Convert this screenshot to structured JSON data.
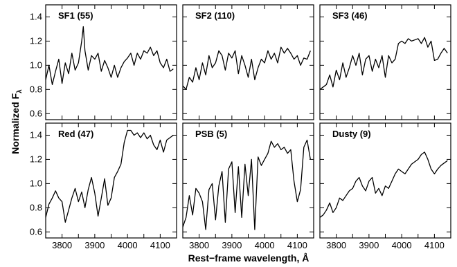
{
  "chart_data": {
    "type": "line",
    "layout": "2x3 panels, shared axes",
    "xlabel": "Rest−frame wavelength, Å",
    "ylabel_main": "Normalized F",
    "ylabel_sub": "λ",
    "xlim": [
      3750,
      4150
    ],
    "ylim": [
      0.55,
      1.5
    ],
    "xticks": [
      3800,
      3850,
      3900,
      3950,
      4000,
      4050,
      4100
    ],
    "xtick_labels": [
      "3800",
      "3900",
      "4000",
      "4100"
    ],
    "xtick_labeled_values": [
      3800,
      3900,
      4000,
      4100
    ],
    "yticks": [
      0.6,
      0.8,
      1.0,
      1.2,
      1.4
    ],
    "ytick_labels": [
      "0.6",
      "0.8",
      "1.0",
      "1.2",
      "1.4"
    ],
    "panels": [
      {
        "title": "SF1 (55)",
        "x": [
          3750,
          3760,
          3770,
          3780,
          3790,
          3800,
          3810,
          3820,
          3830,
          3840,
          3850,
          3860,
          3865,
          3870,
          3880,
          3890,
          3900,
          3910,
          3920,
          3930,
          3940,
          3950,
          3960,
          3970,
          3980,
          3990,
          4000,
          4010,
          4020,
          4030,
          4040,
          4050,
          4060,
          4070,
          4080,
          4090,
          4100,
          4110,
          4120,
          4130,
          4140
        ],
        "y": [
          0.88,
          1.0,
          0.84,
          0.95,
          1.05,
          0.85,
          1.02,
          0.93,
          1.1,
          0.96,
          1.02,
          1.2,
          1.32,
          1.12,
          0.96,
          1.08,
          1.05,
          1.1,
          0.95,
          1.04,
          0.98,
          0.9,
          1.0,
          0.9,
          0.98,
          1.03,
          1.06,
          1.1,
          1.0,
          1.1,
          1.05,
          1.12,
          1.1,
          1.15,
          1.08,
          1.12,
          1.02,
          0.98,
          1.05,
          0.95,
          0.97
        ]
      },
      {
        "title": "SF2 (110)",
        "x": [
          3750,
          3760,
          3770,
          3780,
          3790,
          3800,
          3810,
          3820,
          3830,
          3840,
          3850,
          3860,
          3870,
          3880,
          3890,
          3900,
          3910,
          3920,
          3930,
          3940,
          3950,
          3960,
          3970,
          3980,
          3990,
          4000,
          4010,
          4020,
          4030,
          4040,
          4050,
          4060,
          4070,
          4080,
          4090,
          4100,
          4110,
          4120,
          4130,
          4140
        ],
        "y": [
          0.83,
          0.8,
          0.9,
          0.86,
          0.98,
          0.88,
          1.02,
          0.92,
          1.08,
          0.98,
          1.02,
          1.12,
          1.08,
          0.96,
          1.1,
          1.06,
          1.12,
          0.93,
          1.08,
          1.0,
          0.9,
          1.05,
          0.88,
          0.98,
          1.05,
          1.02,
          1.12,
          1.05,
          1.1,
          1.02,
          1.15,
          1.1,
          1.14,
          1.1,
          1.05,
          1.08,
          1.0,
          1.06,
          1.05,
          1.12
        ]
      },
      {
        "title": "SF3 (46)",
        "x": [
          3750,
          3760,
          3770,
          3780,
          3790,
          3800,
          3810,
          3820,
          3830,
          3840,
          3850,
          3860,
          3870,
          3880,
          3890,
          3900,
          3910,
          3920,
          3930,
          3940,
          3950,
          3960,
          3970,
          3980,
          3990,
          4000,
          4010,
          4020,
          4030,
          4040,
          4050,
          4060,
          4070,
          4080,
          4090,
          4100,
          4110,
          4120,
          4130,
          4140
        ],
        "y": [
          0.8,
          0.82,
          0.84,
          0.92,
          0.82,
          0.96,
          0.88,
          1.02,
          0.9,
          0.98,
          1.08,
          1.0,
          1.1,
          0.92,
          1.05,
          1.08,
          0.95,
          1.05,
          0.98,
          1.08,
          0.9,
          1.08,
          1.02,
          1.05,
          1.18,
          1.2,
          1.18,
          1.22,
          1.2,
          1.21,
          1.22,
          1.18,
          1.23,
          1.15,
          1.2,
          1.04,
          1.05,
          1.1,
          1.14,
          1.1
        ]
      },
      {
        "title": "Red (47)",
        "x": [
          3750,
          3760,
          3770,
          3780,
          3790,
          3800,
          3810,
          3820,
          3830,
          3840,
          3850,
          3860,
          3870,
          3880,
          3890,
          3900,
          3910,
          3920,
          3930,
          3940,
          3950,
          3960,
          3970,
          3980,
          3990,
          4000,
          4010,
          4020,
          4030,
          4040,
          4050,
          4060,
          4070,
          4080,
          4090,
          4100,
          4110,
          4120,
          4130,
          4140
        ],
        "y": [
          0.72,
          0.83,
          0.88,
          0.94,
          0.88,
          0.85,
          0.68,
          0.78,
          0.88,
          0.96,
          0.85,
          0.93,
          0.8,
          0.95,
          1.05,
          0.92,
          0.73,
          0.88,
          1.04,
          0.82,
          0.88,
          1.05,
          1.1,
          1.16,
          1.34,
          1.44,
          1.44,
          1.4,
          1.42,
          1.38,
          1.42,
          1.37,
          1.4,
          1.32,
          1.28,
          1.36,
          1.26,
          1.36,
          1.38,
          1.4
        ]
      },
      {
        "title": "PSB (5)",
        "x": [
          3750,
          3760,
          3770,
          3780,
          3790,
          3800,
          3810,
          3820,
          3830,
          3840,
          3850,
          3860,
          3870,
          3880,
          3890,
          3900,
          3910,
          3920,
          3930,
          3940,
          3950,
          3960,
          3970,
          3980,
          3990,
          4000,
          4010,
          4020,
          4030,
          4040,
          4050,
          4060,
          4070,
          4080,
          4090,
          4100,
          4110,
          4120,
          4130,
          4140
        ],
        "y": [
          0.64,
          0.72,
          0.9,
          0.74,
          0.96,
          0.92,
          0.85,
          0.62,
          0.95,
          1.0,
          0.7,
          0.98,
          1.1,
          0.68,
          1.12,
          1.18,
          0.76,
          1.14,
          0.72,
          1.16,
          0.9,
          1.2,
          0.62,
          1.22,
          1.15,
          1.2,
          1.25,
          1.35,
          1.3,
          1.33,
          1.28,
          1.3,
          1.25,
          1.28,
          1.02,
          0.85,
          0.95,
          1.3,
          1.36,
          1.2
        ]
      },
      {
        "title": "Dusty (9)",
        "x": [
          3750,
          3760,
          3770,
          3780,
          3790,
          3800,
          3810,
          3820,
          3830,
          3840,
          3850,
          3860,
          3870,
          3880,
          3890,
          3900,
          3910,
          3920,
          3930,
          3940,
          3950,
          3960,
          3970,
          3980,
          3990,
          4000,
          4010,
          4020,
          4030,
          4040,
          4050,
          4060,
          4070,
          4080,
          4090,
          4100,
          4110,
          4120,
          4130,
          4140
        ],
        "y": [
          0.72,
          0.74,
          0.78,
          0.84,
          0.76,
          0.8,
          0.88,
          0.86,
          0.9,
          0.94,
          0.96,
          1.02,
          1.05,
          0.98,
          0.94,
          1.02,
          1.05,
          0.92,
          0.96,
          0.9,
          0.98,
          0.96,
          1.02,
          1.08,
          1.12,
          1.1,
          1.08,
          1.12,
          1.16,
          1.18,
          1.2,
          1.24,
          1.26,
          1.2,
          1.12,
          1.08,
          1.12,
          1.15,
          1.17,
          1.19
        ]
      }
    ]
  }
}
